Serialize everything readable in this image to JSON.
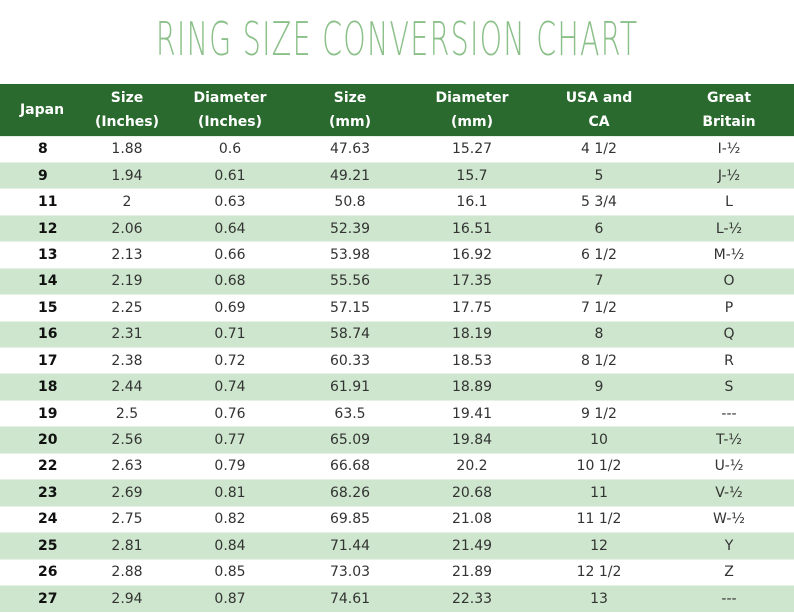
{
  "title": "Ring Size Conversion Chart",
  "columns": [
    {
      "line1": "Japan",
      "line2": ""
    },
    {
      "line1": "Size",
      "line2": "(Inches)"
    },
    {
      "line1": "Diameter",
      "line2": "(Inches)"
    },
    {
      "line1": "Size",
      "line2": "(mm)"
    },
    {
      "line1": "Diameter",
      "line2": "(mm)"
    },
    {
      "line1": "USA and",
      "line2": "CA"
    },
    {
      "line1": "Great",
      "line2": "Britain"
    }
  ],
  "rows": [
    [
      "8",
      "1.88",
      "0.6",
      "47.63",
      "15.27",
      "4 1/2",
      "I-½"
    ],
    [
      "9",
      "1.94",
      "0.61",
      "49.21",
      "15.7",
      "5",
      "J-½"
    ],
    [
      "11",
      "2",
      "0.63",
      "50.8",
      "16.1",
      "5 3/4",
      "L"
    ],
    [
      "12",
      "2.06",
      "0.64",
      "52.39",
      "16.51",
      "6",
      "L-½"
    ],
    [
      "13",
      "2.13",
      "0.66",
      "53.98",
      "16.92",
      "6 1/2",
      "M-½"
    ],
    [
      "14",
      "2.19",
      "0.68",
      "55.56",
      "17.35",
      "7",
      "O"
    ],
    [
      "15",
      "2.25",
      "0.69",
      "57.15",
      "17.75",
      "7 1/2",
      "P"
    ],
    [
      "16",
      "2.31",
      "0.71",
      "58.74",
      "18.19",
      "8",
      "Q"
    ],
    [
      "17",
      "2.38",
      "0.72",
      "60.33",
      "18.53",
      "8 1/2",
      "R"
    ],
    [
      "18",
      "2.44",
      "0.74",
      "61.91",
      "18.89",
      "9",
      "S"
    ],
    [
      "19",
      "2.5",
      "0.76",
      "63.5",
      "19.41",
      "9 1/2",
      "---"
    ],
    [
      "20",
      "2.56",
      "0.77",
      "65.09",
      "19.84",
      "10",
      "T-½"
    ],
    [
      "22",
      "2.63",
      "0.79",
      "66.68",
      "20.2",
      "10 1/2",
      "U-½"
    ],
    [
      "23",
      "2.69",
      "0.81",
      "68.26",
      "20.68",
      "11",
      "V-½"
    ],
    [
      "24",
      "2.75",
      "0.82",
      "69.85",
      "21.08",
      "11 1/2",
      "W-½"
    ],
    [
      "25",
      "2.81",
      "0.84",
      "71.44",
      "21.49",
      "12",
      "Y"
    ],
    [
      "26",
      "2.88",
      "0.85",
      "73.03",
      "21.89",
      "12 1/2",
      "Z"
    ],
    [
      "27",
      "2.94",
      "0.87",
      "74.61",
      "22.33",
      "13",
      "---"
    ]
  ],
  "colors": {
    "title": "#8cc08a",
    "header_bg": "#2b6a2e",
    "stripe": "#cde6cd"
  }
}
